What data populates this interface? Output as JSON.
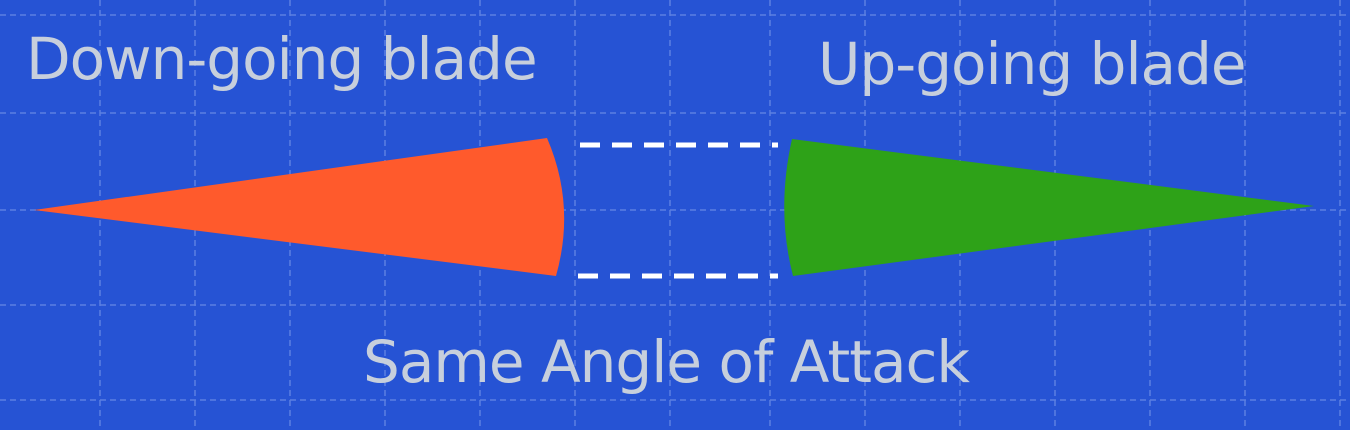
{
  "labels": {
    "down_going": "Down-going blade",
    "up_going": "Up-going blade",
    "caption": "Same Angle of Attack"
  },
  "colors": {
    "background": "#2653d4",
    "down_going_blade": "#ff5a2c",
    "up_going_blade": "#2ea218",
    "label_text": "#c7cfdc",
    "dashed_line": "#ffffff",
    "grid_line": "#6f8fe6"
  }
}
